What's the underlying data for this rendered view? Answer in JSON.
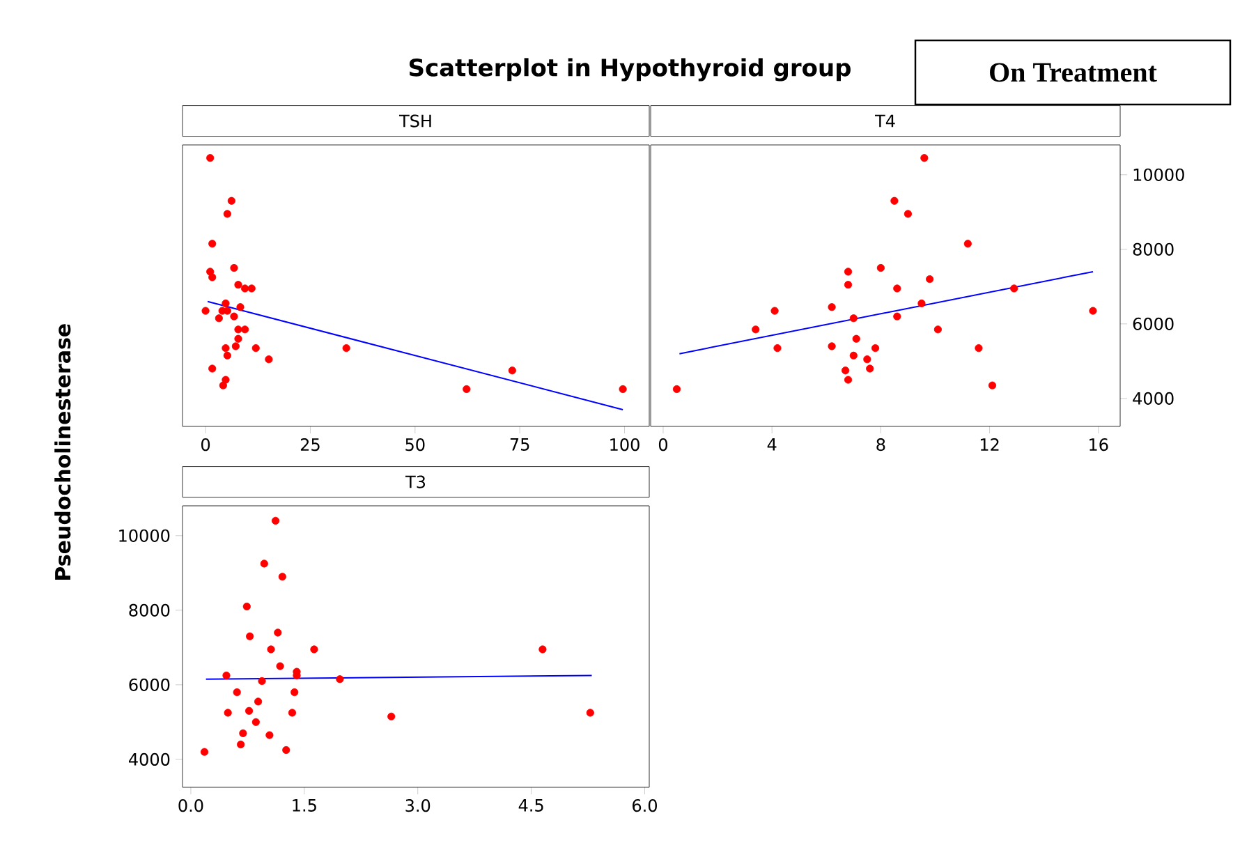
{
  "chart_data": [
    {
      "type": "scatter",
      "title": "TSH",
      "annotations": [
        "Scatterplot in Hypothyroid group",
        "On Treatment"
      ],
      "xlim": [
        -5.5,
        105.9
      ],
      "ylim": [
        3250,
        10800
      ],
      "xticks": [
        0,
        25,
        50,
        75,
        100
      ],
      "tick_labels": "x",
      "marker": "circle",
      "series": [
        {
          "color": "#ff0000",
          "x": [
            1.1,
            6.2,
            5.2,
            1.6,
            1.1,
            1.6,
            6.8,
            7.8,
            9.4,
            11.0,
            0,
            4.8,
            4.0,
            5.2,
            8.3,
            3.2,
            6.8,
            7.8,
            9.4,
            7.8,
            7.2,
            4.8,
            5.2,
            12.0,
            15.1,
            33.6,
            1.6,
            4.8,
            4.2,
            62.3,
            73.2,
            99.6
          ],
          "values": [
            10450,
            9300,
            8950,
            8150,
            7400,
            7250,
            7500,
            7050,
            6950,
            6950,
            6350,
            6550,
            6350,
            6350,
            6450,
            6150,
            6200,
            5850,
            5850,
            5600,
            5400,
            5350,
            5150,
            5350,
            5050,
            5350,
            4800,
            4500,
            4350,
            4250,
            4750,
            4250
          ]
        },
        {
          "type": "line",
          "marker": "none",
          "color": "#0000ff",
          "x": [
            0.5,
            99.6
          ],
          "values": [
            6600,
            3700
          ]
        }
      ]
    },
    {
      "type": "scatter",
      "title": "T4",
      "xlim": [
        -0.46,
        16.8
      ],
      "ylim": [
        3250,
        10800
      ],
      "xticks": [
        0,
        4,
        8,
        12,
        16
      ],
      "yticks": [
        4000,
        6000,
        8000,
        10000
      ],
      "marker": "circle",
      "series": [
        {
          "color": "#ff0000",
          "x": [
            0.5,
            3.4,
            4.1,
            4.2,
            6.2,
            6.2,
            6.8,
            6.8,
            6.7,
            6.8,
            7.0,
            7.1,
            7.0,
            7.5,
            7.6,
            7.8,
            8.0,
            8.5,
            8.6,
            8.6,
            9.0,
            9.5,
            9.6,
            9.8,
            10.1,
            11.2,
            11.6,
            12.1,
            12.9,
            15.8
          ],
          "values": [
            4250,
            5850,
            6350,
            5350,
            6450,
            5400,
            7400,
            7050,
            4750,
            4500,
            6150,
            5600,
            5150,
            5050,
            4800,
            5350,
            7500,
            9300,
            6200,
            6950,
            8950,
            6550,
            10450,
            7200,
            5850,
            8150,
            5350,
            4350,
            6950,
            6350
          ]
        },
        {
          "type": "line",
          "marker": "none",
          "color": "#0000ff",
          "x": [
            0.6,
            15.8
          ],
          "values": [
            5200,
            7400
          ]
        }
      ]
    },
    {
      "type": "scatter",
      "title": "T3",
      "ylabel": "Pseudocholinesterase",
      "xlim": [
        -0.11,
        6.06
      ],
      "ylim": [
        3250,
        10800
      ],
      "xticks": [
        {
          "value": 0,
          "label": "0.0"
        },
        1.5,
        {
          "value": 3,
          "label": "3.0"
        },
        4.5,
        {
          "value": 6,
          "label": "6.0"
        }
      ],
      "yticks": [
        4000,
        6000,
        8000,
        10000
      ],
      "marker": "circle",
      "series": [
        {
          "color": "#ff0000",
          "x": [
            1.12,
            0.97,
            1.21,
            0.74,
            0.78,
            1.15,
            1.06,
            1.63,
            4.65,
            1.18,
            0.47,
            1.4,
            1.4,
            0.94,
            1.97,
            0.61,
            1.37,
            0.89,
            0.49,
            0.77,
            1.34,
            0.86,
            2.65,
            5.28,
            0.69,
            1.04,
            0.66,
            1.26,
            0.18
          ],
          "values": [
            10400,
            9250,
            8900,
            8100,
            7300,
            7400,
            6950,
            6950,
            6950,
            6500,
            6250,
            6350,
            6250,
            6100,
            6150,
            5800,
            5800,
            5550,
            5250,
            5300,
            5250,
            5000,
            5150,
            5250,
            4700,
            4650,
            4400,
            4250,
            4200
          ]
        },
        {
          "type": "line",
          "marker": "none",
          "color": "#0000ff",
          "x": [
            0.2,
            5.3
          ],
          "values": [
            6150,
            6250
          ]
        }
      ]
    }
  ]
}
